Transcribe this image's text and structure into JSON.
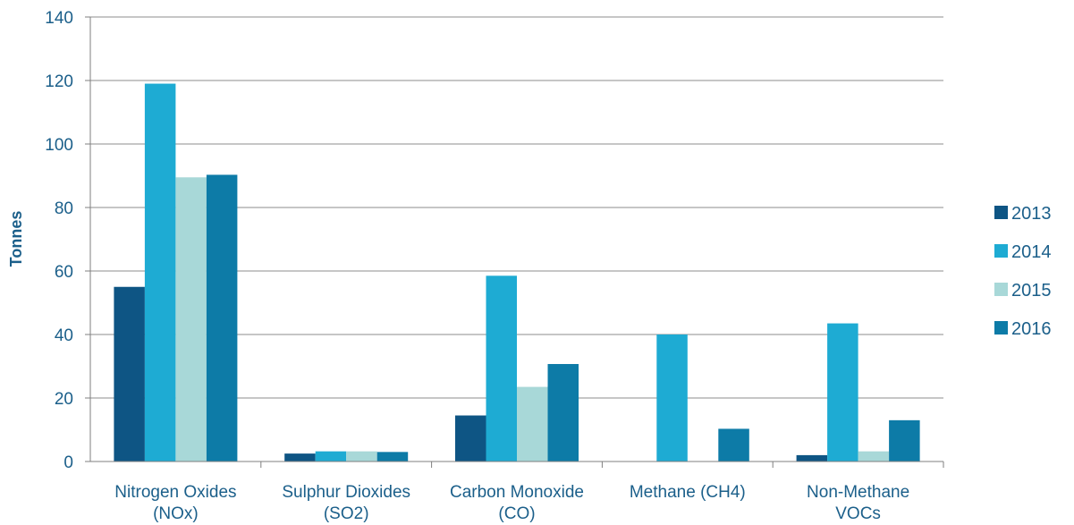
{
  "chart_data": {
    "type": "bar",
    "title": "",
    "xlabel": "",
    "ylabel": "Tonnes",
    "ylim": [
      0,
      140
    ],
    "yticks": [
      0,
      20,
      40,
      60,
      80,
      100,
      120,
      140
    ],
    "grid": true,
    "legend_position": "right",
    "categories": [
      [
        "Nitrogen Oxides",
        "(NOx)"
      ],
      [
        "Sulphur Dioxides",
        "(SO2)"
      ],
      [
        "Carbon Monoxide",
        "(CO)"
      ],
      [
        "Methane (CH4)",
        ""
      ],
      [
        "Non-Methane",
        "VOCs"
      ]
    ],
    "series": [
      {
        "name": "2013",
        "color": "#0e5584",
        "values": [
          55,
          2.5,
          14.5,
          0,
          2
        ]
      },
      {
        "name": "2014",
        "color": "#1eabd3",
        "values": [
          119,
          3.2,
          58.5,
          40,
          43.5
        ]
      },
      {
        "name": "2015",
        "color": "#a8d8d8",
        "values": [
          89.5,
          3.2,
          23.5,
          0,
          3.2
        ]
      },
      {
        "name": "2016",
        "color": "#0d7ba7",
        "values": [
          90.3,
          3,
          30.7,
          10.3,
          13
        ]
      }
    ],
    "colors": {
      "text": "#1b5f8a",
      "grid": "#8c8c8c",
      "axis": "#7f7f7f"
    }
  }
}
